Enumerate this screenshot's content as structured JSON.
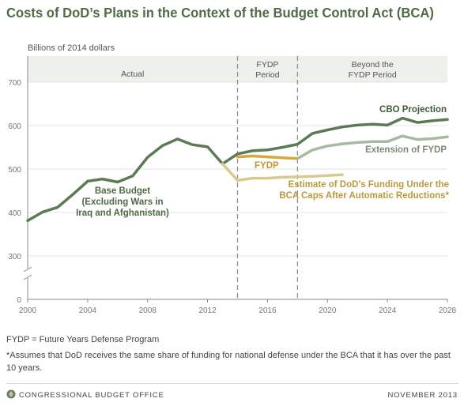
{
  "title": "Costs of DoD’s Plans in the Context of the Budget Control Act (BCA)",
  "units_label": "Billions of 2014 dollars",
  "footnotes": {
    "abbrev": "FYDP = Future Years Defense Program",
    "asterisk": "*Assumes that DoD receives the same share of funding for national defense under the BCA that it has over the past 10 years."
  },
  "footer": {
    "org": "CONGRESSIONAL BUDGET OFFICE",
    "date": "NOVEMBER 2013"
  },
  "colors": {
    "dark_green": "#5e7a54",
    "light_green": "#a8b9a2",
    "gold": "#d4a93e",
    "light_gold": "#d9c98d",
    "band": "#eef0ec",
    "axis": "#888888"
  },
  "chart_data": {
    "type": "line",
    "xlim": [
      2000,
      2028
    ],
    "ylim": [
      0,
      700
    ],
    "y_axis_break": true,
    "x_ticks": [
      "2000",
      "2004",
      "2008",
      "2012",
      "2016",
      "2020",
      "2024",
      "2028"
    ],
    "y_ticks": [
      "0",
      "300",
      "400",
      "500",
      "600",
      "700"
    ],
    "periods": [
      {
        "label": "Actual",
        "from": 2000,
        "to": 2014
      },
      {
        "label": "FYDP\nPeriod",
        "from": 2014,
        "to": 2018
      },
      {
        "label": "Beyond the\nFYDP Period",
        "from": 2018,
        "to": 2028
      }
    ],
    "series": [
      {
        "name": "Base Budget\n(Excluding Wars in\nIraq and Afghanistan)",
        "style": "dark",
        "x": [
          2000,
          2001,
          2002,
          2003,
          2004,
          2005,
          2006,
          2007,
          2008,
          2009,
          2010,
          2011,
          2012,
          2013
        ],
        "y": [
          381,
          401,
          412,
          441,
          472,
          477,
          470,
          484,
          527,
          554,
          569,
          556,
          551,
          512
        ]
      },
      {
        "name": "CBO Projection",
        "style": "dark",
        "x": [
          2013,
          2014,
          2015,
          2016,
          2017,
          2018,
          2019,
          2020,
          2021,
          2022,
          2023,
          2024,
          2025,
          2026,
          2027,
          2028
        ],
        "y": [
          512,
          535,
          542,
          544,
          550,
          557,
          582,
          590,
          597,
          601,
          603,
          601,
          617,
          607,
          611,
          614
        ]
      },
      {
        "name": "FYDP",
        "style": "gold",
        "x": [
          2014,
          2015,
          2016,
          2017,
          2018
        ],
        "y": [
          528,
          530,
          528,
          526,
          524
        ]
      },
      {
        "name": "Extension of FYDP",
        "style": "light",
        "x": [
          2018,
          2019,
          2020,
          2021,
          2022,
          2023,
          2024,
          2025,
          2026,
          2027,
          2028
        ],
        "y": [
          524,
          544,
          553,
          558,
          561,
          563,
          563,
          576,
          568,
          570,
          574
        ]
      },
      {
        "name": "Estimate of DoD’s Funding Under the\nBCA Caps After Automatic Reductions*",
        "style": "lightgold",
        "x": [
          2013,
          2014,
          2015,
          2016,
          2017,
          2018,
          2019,
          2020,
          2021
        ],
        "y": [
          512,
          474,
          479,
          479,
          481,
          482,
          483,
          485,
          487
        ]
      }
    ]
  }
}
